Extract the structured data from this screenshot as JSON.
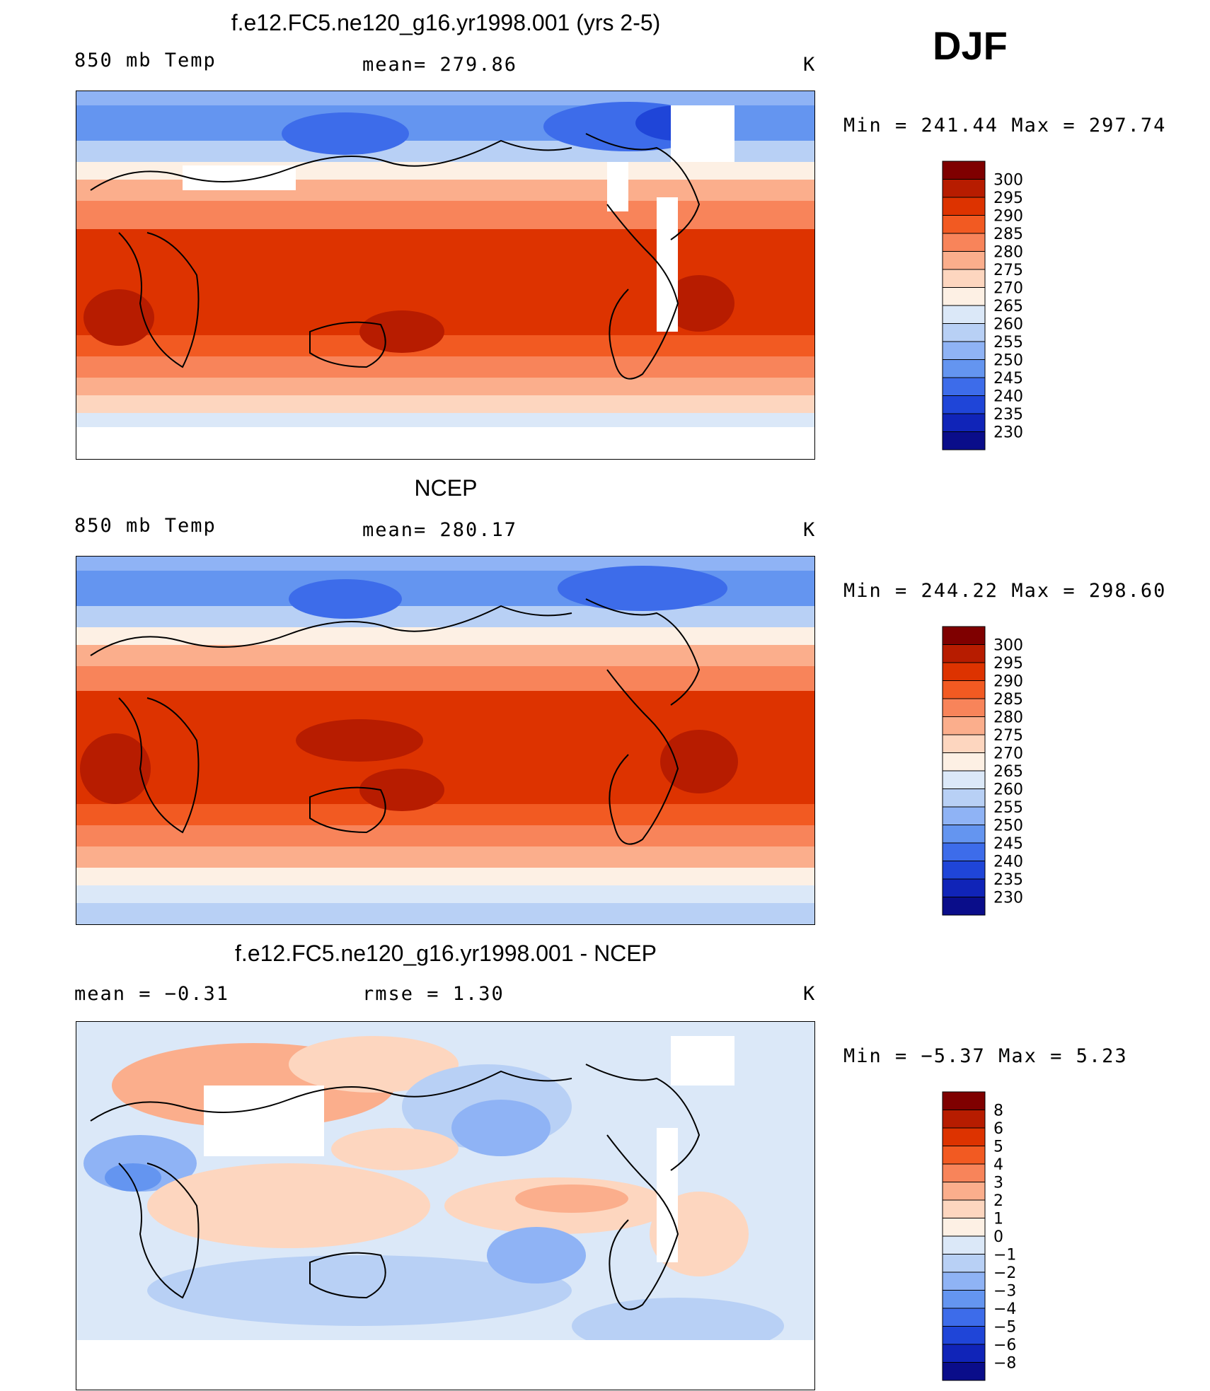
{
  "season": "DJF",
  "panels": [
    {
      "title": "f.e12.FC5.ne120_g16.yr1998.001 (yrs 2-5)",
      "left_label": "850 mb Temp",
      "center_label": "mean=  279.86",
      "units": "K",
      "minmax": "Min  =  241.44  Max  =  297.74",
      "colorbar_labels": [
        "300",
        "295",
        "290",
        "285",
        "280",
        "275",
        "270",
        "265",
        "260",
        "255",
        "250",
        "245",
        "240",
        "235",
        "230"
      ]
    },
    {
      "title": "NCEP",
      "left_label": "850 mb Temp",
      "center_label": "mean=  280.17",
      "units": "K",
      "minmax": "Min  =  244.22  Max  =  298.60",
      "colorbar_labels": [
        "300",
        "295",
        "290",
        "285",
        "280",
        "275",
        "270",
        "265",
        "260",
        "255",
        "250",
        "245",
        "240",
        "235",
        "230"
      ]
    },
    {
      "title": "f.e12.FC5.ne120_g16.yr1998.001 - NCEP",
      "left_label": "mean  =    −0.31",
      "center_label": "rmse  =     1.30",
      "units": "K",
      "minmax": "Min  =   −5.37  Max  =     5.23",
      "colorbar_labels": [
        "8",
        "6",
        "5",
        "4",
        "3",
        "2",
        "1",
        "0",
        "−1",
        "−2",
        "−3",
        "−4",
        "−5",
        "−6",
        "−8"
      ]
    }
  ],
  "colors": {
    "abs_scale": [
      "#7f0000",
      "#b71c00",
      "#dd3300",
      "#f25a22",
      "#f8845a",
      "#fbae8c",
      "#fdd6bf",
      "#fdf0e4",
      "#dbe8f8",
      "#b8d0f5",
      "#8fb3f5",
      "#6495f0",
      "#3d6cea",
      "#1f45d8",
      "#1024b8",
      "#0a0d8a"
    ],
    "diff_scale": [
      "#7f0000",
      "#b71c00",
      "#dd3300",
      "#f25a22",
      "#f8845a",
      "#fbae8c",
      "#fdd6bf",
      "#fdf0e4",
      "#dbe8f8",
      "#b8d0f5",
      "#8fb3f5",
      "#6495f0",
      "#3d6cea",
      "#1f45d8",
      "#1024b8",
      "#0a0d8a"
    ]
  }
}
